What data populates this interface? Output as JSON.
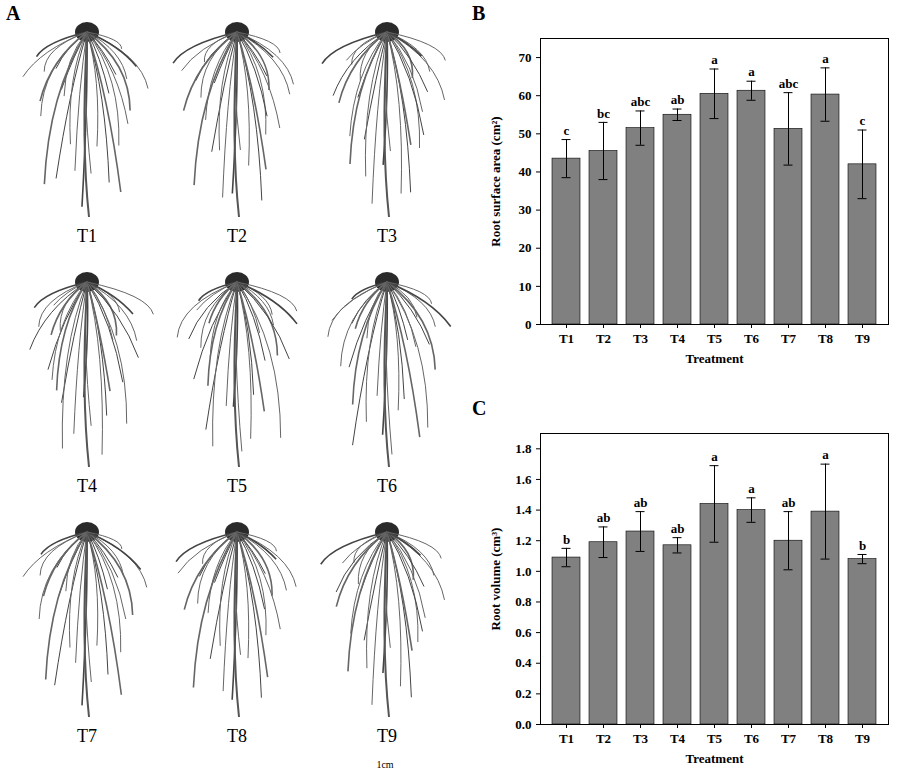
{
  "panel_a": {
    "label": "A",
    "images": [
      "T1",
      "T2",
      "T3",
      "T4",
      "T5",
      "T6",
      "T7",
      "T8",
      "T9"
    ],
    "scale_bar": "1cm"
  },
  "chart_data": [
    {
      "panel": "B",
      "type": "bar",
      "x_label": "Treatment",
      "y_label": "Root surface area (cm²)",
      "categories": [
        "T1",
        "T2",
        "T3",
        "T4",
        "T5",
        "T6",
        "T7",
        "T8",
        "T9"
      ],
      "values": [
        43.5,
        45.5,
        51.5,
        55,
        60.5,
        61.3,
        51.3,
        60.3,
        42
      ],
      "errors": [
        5,
        7.5,
        4.5,
        1.5,
        6.5,
        2.5,
        9.5,
        7,
        9
      ],
      "letters": [
        "c",
        "bc",
        "abc",
        "ab",
        "a",
        "a",
        "abc",
        "a",
        "c"
      ],
      "color": "#808080",
      "ylim": [
        0,
        75
      ],
      "yticks": [
        0,
        10,
        20,
        30,
        40,
        50,
        60,
        70
      ]
    },
    {
      "panel": "C",
      "type": "bar",
      "x_label": "Treatment",
      "y_label": "Root volume (cm³)",
      "categories": [
        "T1",
        "T2",
        "T3",
        "T4",
        "T5",
        "T6",
        "T7",
        "T8",
        "T9"
      ],
      "values": [
        1.09,
        1.19,
        1.26,
        1.17,
        1.44,
        1.4,
        1.2,
        1.39,
        1.08
      ],
      "errors": [
        0.06,
        0.1,
        0.13,
        0.05,
        0.25,
        0.08,
        0.19,
        0.31,
        0.03
      ],
      "letters": [
        "b",
        "ab",
        "ab",
        "ab",
        "a",
        "a",
        "ab",
        "a",
        "b"
      ],
      "color": "#808080",
      "ylim": [
        0,
        1.9
      ],
      "yticks": [
        {
          "value": 0,
          "label": "0.0"
        },
        0.2,
        0.4,
        0.6,
        0.8,
        {
          "value": 1,
          "label": "1.0"
        },
        1.2,
        1.4,
        1.6,
        1.8
      ]
    }
  ]
}
